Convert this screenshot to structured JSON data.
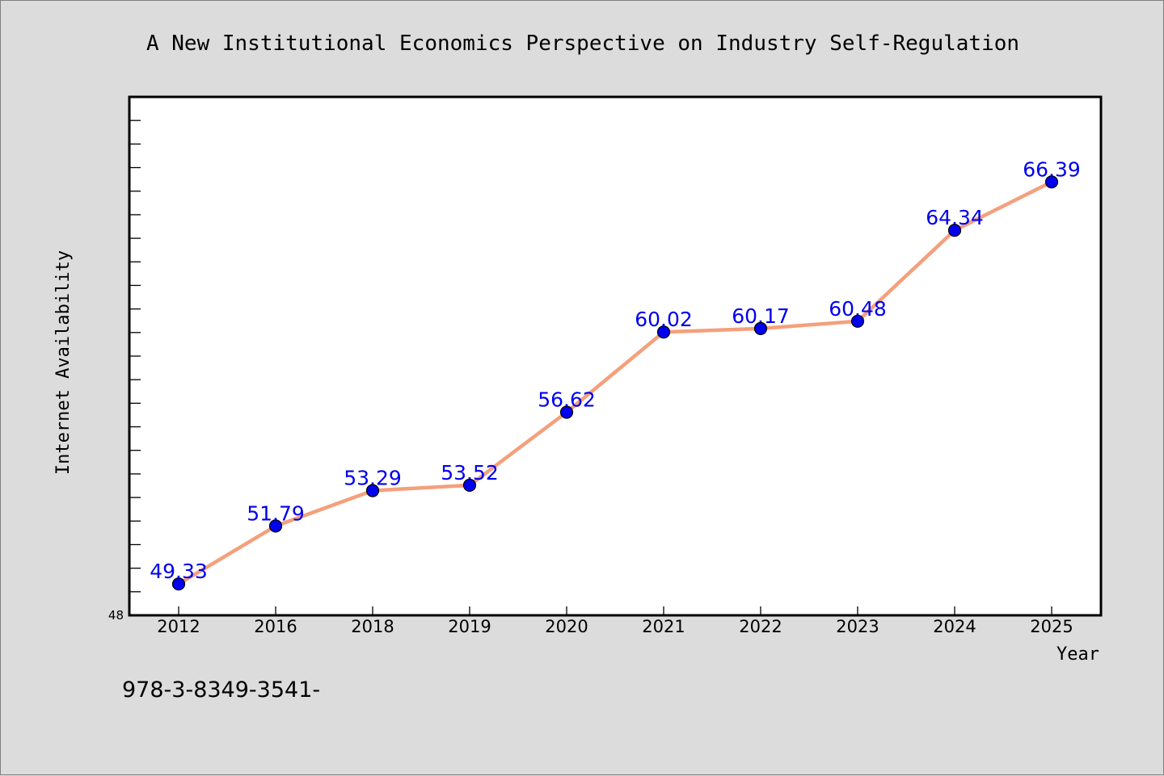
{
  "chart_data": {
    "type": "line",
    "title": "A New Institutional Economics Perspective on Industry Self-Regulation",
    "xlabel": "Year",
    "ylabel": "Internet Availability",
    "categories": [
      "2012",
      "2016",
      "2018",
      "2019",
      "2020",
      "2021",
      "2022",
      "2023",
      "2024",
      "2025"
    ],
    "series": [
      {
        "values": [
          49.33,
          51.79,
          53.29,
          53.52,
          56.62,
          60.02,
          60.17,
          60.48,
          64.34,
          66.39
        ],
        "labels": [
          "49.33",
          "51.79",
          "53.29",
          "53.52",
          "56.62",
          "60.02",
          "60.17",
          "60.48",
          "64.34",
          "66.39"
        ],
        "line_color": "#f4a07c",
        "marker_color": "#0000ee"
      }
    ],
    "ylim": [
      48,
      70
    ],
    "y_tick_labels": [
      "48"
    ],
    "grid": false,
    "legend": "none"
  },
  "footer": {
    "text": "978-3-8349-3541-"
  },
  "colors": {
    "background": "#dcdcdc",
    "plot_background": "#ffffff",
    "data_label": "#0000ee"
  }
}
